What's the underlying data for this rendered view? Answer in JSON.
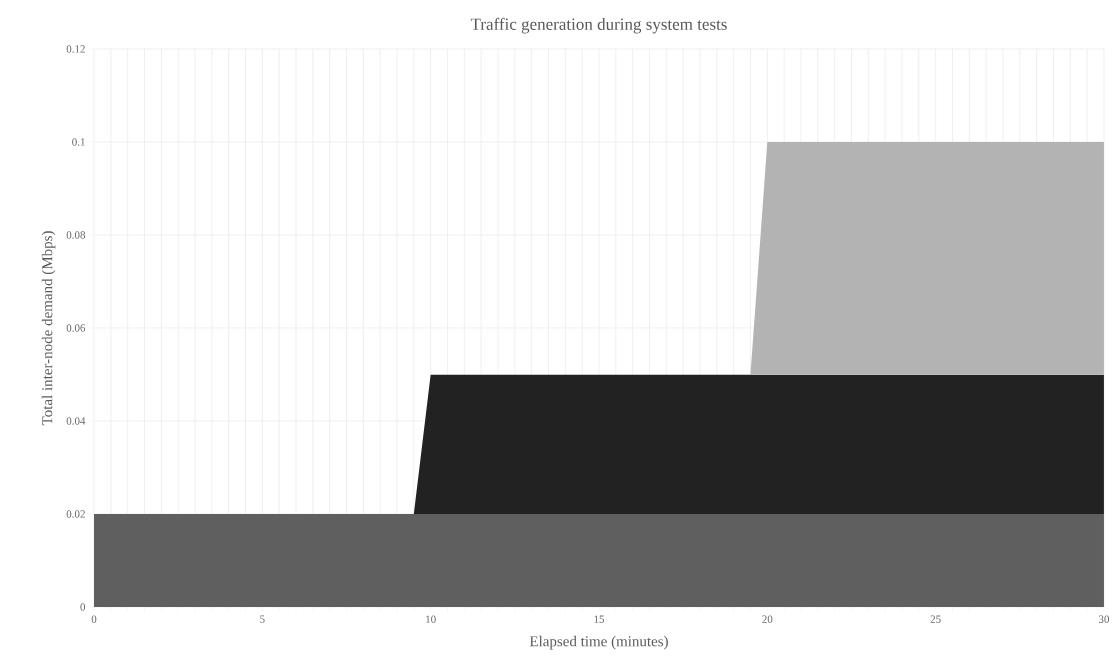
{
  "chart_data": {
    "type": "area",
    "stacked": true,
    "title": "Traffic generation during system tests",
    "xlabel": "Elapsed time (minutes)",
    "ylabel": "Total inter-node demand (Mbps)",
    "x": [
      0,
      9.5,
      10,
      19.5,
      20,
      30
    ],
    "series": [
      {
        "color": "#5f5f5f",
        "values": [
          0.02,
          0.02,
          0.02,
          0.02,
          0.02,
          0.02
        ]
      },
      {
        "color": "#222222",
        "values": [
          0,
          0,
          0.03,
          0.03,
          0.03,
          0.03
        ]
      },
      {
        "color": "#b3b3b3",
        "values": [
          0,
          0,
          0,
          0,
          0.05,
          0.05
        ]
      }
    ],
    "xlim": [
      0,
      30
    ],
    "ylim": [
      0,
      0.12
    ],
    "xticks": [
      0,
      {
        "value": 0.5,
        "label": null
      },
      {
        "value": 1,
        "label": null
      },
      {
        "value": 1.5,
        "label": null
      },
      {
        "value": 2,
        "label": null
      },
      {
        "value": 2.5,
        "label": null
      },
      {
        "value": 3,
        "label": null
      },
      {
        "value": 3.5,
        "label": null
      },
      {
        "value": 4,
        "label": null
      },
      {
        "value": 4.5,
        "label": null
      },
      5,
      {
        "value": 5.5,
        "label": null
      },
      {
        "value": 6,
        "label": null
      },
      {
        "value": 6.5,
        "label": null
      },
      {
        "value": 7,
        "label": null
      },
      {
        "value": 7.5,
        "label": null
      },
      {
        "value": 8,
        "label": null
      },
      {
        "value": 8.5,
        "label": null
      },
      {
        "value": 9,
        "label": null
      },
      {
        "value": 9.5,
        "label": null
      },
      10,
      {
        "value": 10.5,
        "label": null
      },
      {
        "value": 11,
        "label": null
      },
      {
        "value": 11.5,
        "label": null
      },
      {
        "value": 12,
        "label": null
      },
      {
        "value": 12.5,
        "label": null
      },
      {
        "value": 13,
        "label": null
      },
      {
        "value": 13.5,
        "label": null
      },
      {
        "value": 14,
        "label": null
      },
      {
        "value": 14.5,
        "label": null
      },
      15,
      {
        "value": 15.5,
        "label": null
      },
      {
        "value": 16,
        "label": null
      },
      {
        "value": 16.5,
        "label": null
      },
      {
        "value": 17,
        "label": null
      },
      {
        "value": 17.5,
        "label": null
      },
      {
        "value": 18,
        "label": null
      },
      {
        "value": 18.5,
        "label": null
      },
      {
        "value": 19,
        "label": null
      },
      {
        "value": 19.5,
        "label": null
      },
      20,
      {
        "value": 20.5,
        "label": null
      },
      {
        "value": 21,
        "label": null
      },
      {
        "value": 21.5,
        "label": null
      },
      {
        "value": 22,
        "label": null
      },
      {
        "value": 22.5,
        "label": null
      },
      {
        "value": 23,
        "label": null
      },
      {
        "value": 23.5,
        "label": null
      },
      {
        "value": 24,
        "label": null
      },
      {
        "value": 24.5,
        "label": null
      },
      25,
      {
        "value": 25.5,
        "label": null
      },
      {
        "value": 26,
        "label": null
      },
      {
        "value": 26.5,
        "label": null
      },
      {
        "value": 27,
        "label": null
      },
      {
        "value": 27.5,
        "label": null
      },
      {
        "value": 28,
        "label": null
      },
      {
        "value": 28.5,
        "label": null
      },
      {
        "value": 29,
        "label": null
      },
      {
        "value": 29.5,
        "label": null
      },
      30
    ],
    "yticks": [
      0,
      0.02,
      0.04,
      0.06,
      0.08,
      0.1,
      0.12
    ],
    "grid": true
  }
}
